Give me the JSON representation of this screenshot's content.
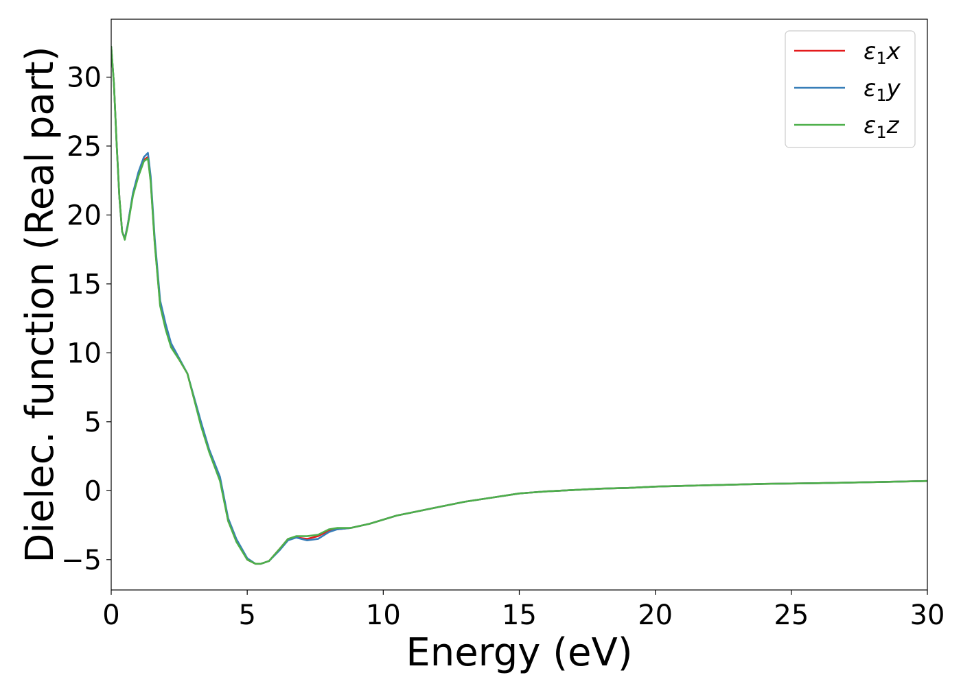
{
  "chart_data": {
    "type": "line",
    "title": "",
    "xlabel": "Energy (eV)",
    "ylabel": "Dielec. function (Real part)",
    "xlim": [
      0,
      30
    ],
    "ylim": [
      -7.2,
      34.2
    ],
    "xticks": [
      0,
      5,
      10,
      15,
      20,
      25,
      30
    ],
    "xtick_labels": [
      "0",
      "5",
      "10",
      "15",
      "20",
      "25",
      "30"
    ],
    "yticks": [
      -5,
      0,
      5,
      10,
      15,
      20,
      25,
      30
    ],
    "ytick_labels": [
      "−5",
      "0",
      "5",
      "10",
      "15",
      "20",
      "25",
      "30"
    ],
    "grid": false,
    "legend_position": "top-right",
    "series": [
      {
        "name": "x",
        "legend_symbol": "ε",
        "legend_sub": "1",
        "color": "#e41a1c",
        "x": [
          0,
          0.1,
          0.2,
          0.3,
          0.4,
          0.5,
          0.6,
          0.8,
          1.0,
          1.2,
          1.35,
          1.45,
          1.6,
          1.8,
          2.0,
          2.2,
          2.5,
          2.8,
          3.0,
          3.3,
          3.6,
          4.0,
          4.3,
          4.6,
          5.0,
          5.3,
          5.5,
          5.8,
          6.2,
          6.5,
          6.8,
          7.2,
          7.6,
          8.0,
          8.3,
          8.8,
          9.5,
          10,
          10.5,
          11,
          12,
          13,
          14,
          15,
          16,
          17,
          18,
          19,
          20,
          22,
          24,
          26,
          28,
          30
        ],
        "y": [
          32.2,
          29.5,
          25.2,
          21.3,
          18.8,
          18.3,
          19.2,
          21.5,
          22.9,
          24.0,
          24.2,
          22.5,
          18.0,
          13.5,
          11.8,
          10.5,
          9.5,
          8.5,
          7.0,
          4.8,
          2.9,
          0.8,
          -2.2,
          -3.6,
          -5.0,
          -5.3,
          -5.3,
          -5.1,
          -4.2,
          -3.5,
          -3.4,
          -3.5,
          -3.3,
          -2.9,
          -2.8,
          -2.7,
          -2.4,
          -2.1,
          -1.8,
          -1.6,
          -1.2,
          -0.8,
          -0.5,
          -0.2,
          -0.05,
          0.05,
          0.15,
          0.2,
          0.3,
          0.4,
          0.5,
          0.55,
          0.62,
          0.7
        ]
      },
      {
        "name": "y",
        "legend_symbol": "ε",
        "legend_sub": "1",
        "color": "#377eb8",
        "x": [
          0,
          0.1,
          0.2,
          0.3,
          0.4,
          0.5,
          0.6,
          0.8,
          1.0,
          1.2,
          1.35,
          1.45,
          1.6,
          1.8,
          2.0,
          2.2,
          2.5,
          2.8,
          3.0,
          3.3,
          3.6,
          4.0,
          4.3,
          4.6,
          5.0,
          5.3,
          5.5,
          5.8,
          6.2,
          6.5,
          6.8,
          7.2,
          7.6,
          8.0,
          8.3,
          8.8,
          9.5,
          10,
          10.5,
          11,
          12,
          13,
          14,
          15,
          16,
          17,
          18,
          19,
          20,
          22,
          24,
          26,
          28,
          30
        ],
        "y": [
          32.2,
          29.5,
          25.2,
          21.3,
          18.8,
          18.3,
          19.2,
          21.6,
          23.1,
          24.2,
          24.5,
          22.8,
          18.3,
          13.8,
          12.1,
          10.7,
          9.6,
          8.5,
          7.1,
          5.0,
          3.0,
          1.0,
          -2.0,
          -3.5,
          -4.9,
          -5.3,
          -5.3,
          -5.1,
          -4.3,
          -3.6,
          -3.4,
          -3.6,
          -3.5,
          -3.0,
          -2.8,
          -2.7,
          -2.4,
          -2.1,
          -1.8,
          -1.6,
          -1.2,
          -0.8,
          -0.5,
          -0.2,
          -0.05,
          0.05,
          0.15,
          0.2,
          0.3,
          0.4,
          0.5,
          0.55,
          0.62,
          0.7
        ]
      },
      {
        "name": "z",
        "legend_symbol": "ε",
        "legend_sub": "1",
        "color": "#4daf4a",
        "x": [
          0,
          0.1,
          0.2,
          0.3,
          0.4,
          0.5,
          0.6,
          0.8,
          1.0,
          1.2,
          1.35,
          1.45,
          1.6,
          1.8,
          2.0,
          2.2,
          2.5,
          2.8,
          3.0,
          3.3,
          3.6,
          4.0,
          4.3,
          4.6,
          5.0,
          5.3,
          5.5,
          5.8,
          6.2,
          6.5,
          6.8,
          7.2,
          7.6,
          8.0,
          8.3,
          8.8,
          9.5,
          10,
          10.5,
          11,
          12,
          13,
          14,
          15,
          16,
          17,
          18,
          19,
          20,
          22,
          24,
          26,
          28,
          30
        ],
        "y": [
          32.2,
          29.5,
          25.2,
          21.3,
          18.8,
          18.2,
          19.1,
          21.4,
          22.8,
          23.9,
          24.1,
          22.4,
          17.9,
          13.4,
          11.7,
          10.4,
          9.5,
          8.5,
          7.0,
          4.7,
          2.8,
          0.7,
          -2.2,
          -3.7,
          -5.0,
          -5.3,
          -5.3,
          -5.1,
          -4.2,
          -3.5,
          -3.3,
          -3.3,
          -3.2,
          -2.8,
          -2.7,
          -2.7,
          -2.4,
          -2.1,
          -1.8,
          -1.6,
          -1.2,
          -0.8,
          -0.5,
          -0.2,
          -0.05,
          0.05,
          0.15,
          0.2,
          0.3,
          0.4,
          0.5,
          0.55,
          0.62,
          0.7
        ]
      }
    ]
  }
}
